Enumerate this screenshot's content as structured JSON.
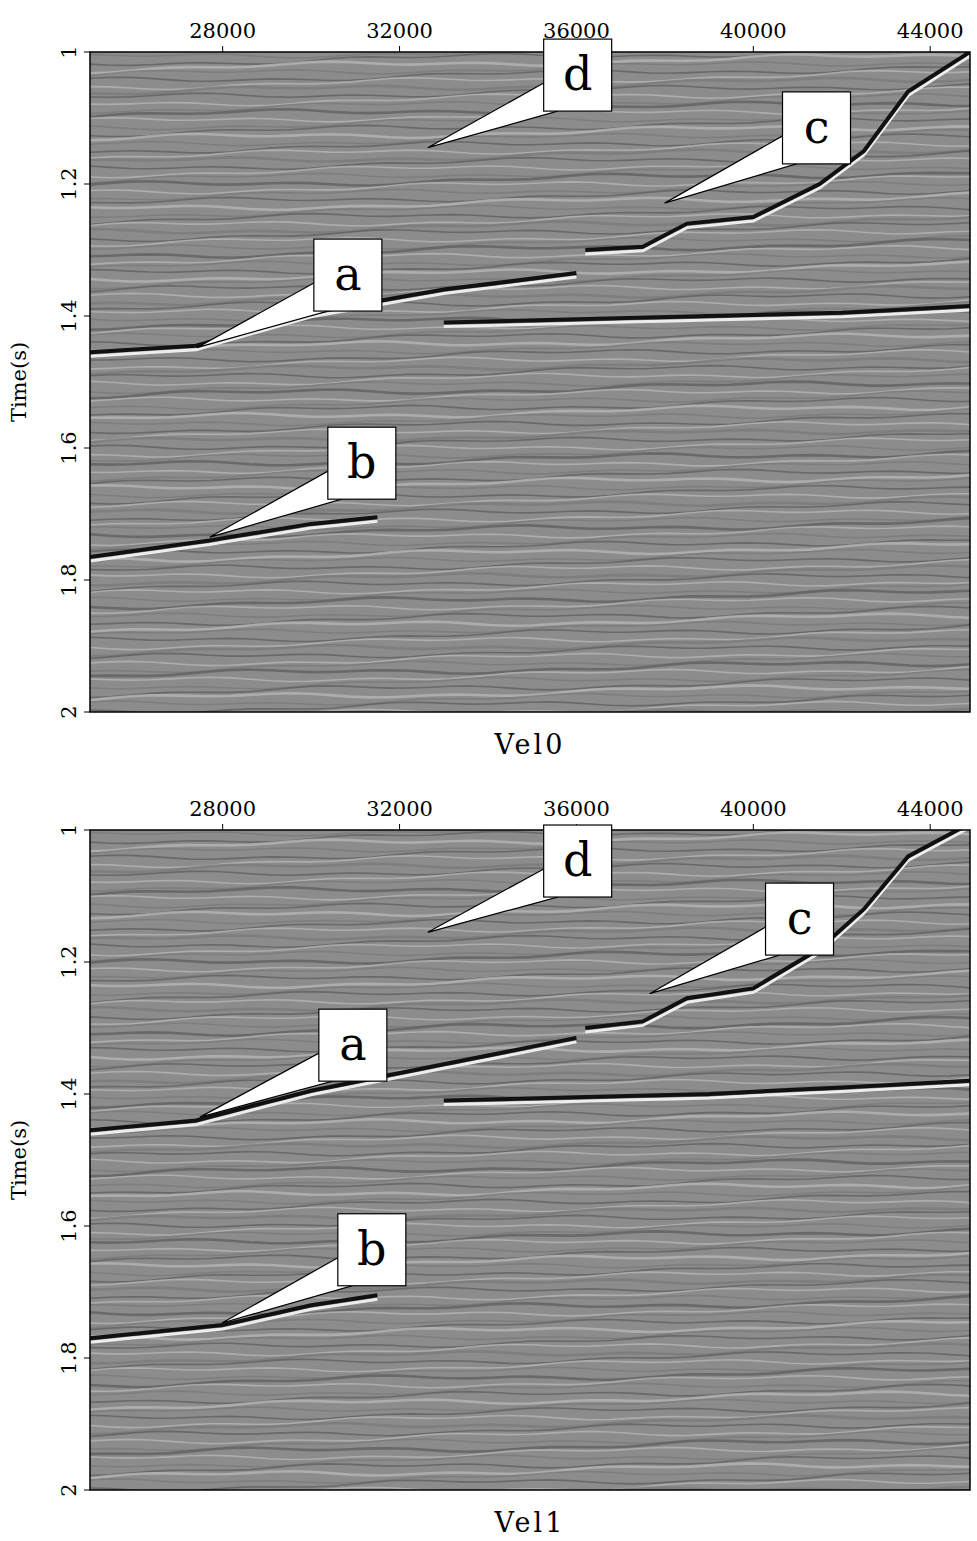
{
  "chart_data": [
    {
      "type": "seismic",
      "title": "Vel0",
      "y_label": "Time(s)",
      "xlim": [
        25000,
        44900
      ],
      "ylim": [
        1,
        2
      ],
      "xticks": [
        28000,
        32000,
        36000,
        40000,
        44000
      ],
      "yticks": [
        1,
        1.2,
        1.4,
        1.6,
        1.8,
        2
      ],
      "horizons": [
        {
          "x": [
            25000,
            27400,
            30000,
            33000,
            36000
          ],
          "t": [
            1.455,
            1.445,
            1.395,
            1.36,
            1.335
          ]
        },
        {
          "x": [
            36200,
            37500,
            38500,
            40000,
            41500,
            42500,
            43500,
            44900
          ],
          "t": [
            1.3,
            1.295,
            1.26,
            1.25,
            1.2,
            1.15,
            1.06,
            1.0
          ]
        },
        {
          "x": [
            25000,
            27700,
            30000,
            31500
          ],
          "t": [
            1.765,
            1.74,
            1.715,
            1.705
          ]
        },
        {
          "x": [
            33000,
            36000,
            39000,
            42000,
            44900
          ],
          "t": [
            1.41,
            1.405,
            1.4,
            1.395,
            1.385
          ]
        }
      ],
      "annotations": [
        {
          "text": "a",
          "x": 27418,
          "y": 1.448,
          "text_x": 30831,
          "text_y": 1.338
        },
        {
          "text": "b",
          "x": 27712,
          "y": 1.735,
          "text_x": 31147,
          "text_y": 1.623
        },
        {
          "text": "c",
          "x": 37994,
          "y": 1.229,
          "text_x": 41429,
          "text_y": 1.115
        },
        {
          "text": "d",
          "x": 32638,
          "y": 1.145,
          "text_x": 36028,
          "text_y": 1.035
        }
      ]
    },
    {
      "type": "seismic",
      "title": "Vel1",
      "y_label": "Time(s)",
      "xlim": [
        25000,
        44900
      ],
      "ylim": [
        1,
        2
      ],
      "xticks": [
        28000,
        32000,
        36000,
        40000,
        44000
      ],
      "yticks": [
        1,
        1.2,
        1.4,
        1.6,
        1.8,
        2
      ],
      "horizons": [
        {
          "x": [
            25000,
            27400,
            30000,
            33000,
            36000
          ],
          "t": [
            1.455,
            1.44,
            1.395,
            1.355,
            1.315
          ]
        },
        {
          "x": [
            36200,
            37500,
            38500,
            40000,
            41500,
            42500,
            43500,
            44900
          ],
          "t": [
            1.3,
            1.29,
            1.255,
            1.24,
            1.18,
            1.12,
            1.04,
            0.99
          ]
        },
        {
          "x": [
            25000,
            28000,
            30000,
            31500
          ],
          "t": [
            1.77,
            1.75,
            1.72,
            1.705
          ]
        },
        {
          "x": [
            33000,
            36000,
            39000,
            42000,
            44900
          ],
          "t": [
            1.41,
            1.405,
            1.4,
            1.39,
            1.38
          ]
        }
      ],
      "annotations": [
        {
          "text": "a",
          "x": 27486,
          "y": 1.435,
          "text_x": 30944,
          "text_y": 1.326
        },
        {
          "text": "b",
          "x": 27983,
          "y": 1.747,
          "text_x": 31373,
          "text_y": 1.636
        },
        {
          "text": "c",
          "x": 37655,
          "y": 1.248,
          "text_x": 41045,
          "text_y": 1.135
        },
        {
          "text": "d",
          "x": 32638,
          "y": 1.155,
          "text_x": 36028,
          "text_y": 1.047
        }
      ]
    }
  ]
}
